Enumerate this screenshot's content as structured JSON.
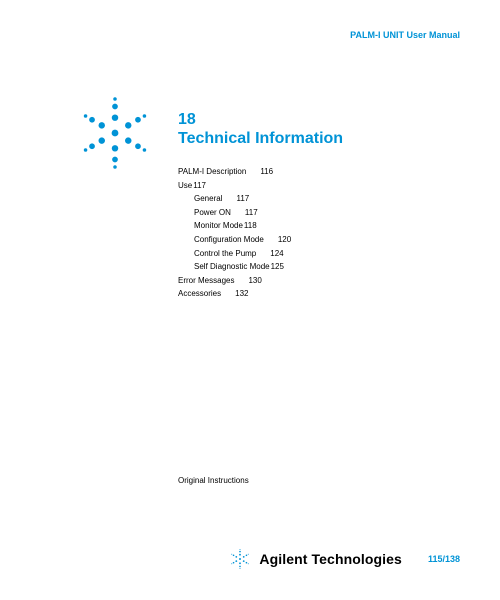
{
  "colors": {
    "accent": "#0093d6",
    "text": "#000000",
    "background": "#ffffff"
  },
  "header": {
    "manual_title": "PALM-I UNIT User Manual"
  },
  "chapter": {
    "number": "18",
    "title": "Technical Information"
  },
  "toc": [
    {
      "label": "PALM-I Description",
      "page": "116",
      "indent": 0
    },
    {
      "label": "Use",
      "page": "117",
      "indent": 0,
      "tight": true
    },
    {
      "label": "General",
      "page": "117",
      "indent": 1
    },
    {
      "label": "Power ON",
      "page": "117",
      "indent": 1
    },
    {
      "label": "Monitor Mode",
      "page": "118",
      "indent": 1,
      "tight": true
    },
    {
      "label": "Configuration Mode",
      "page": "120",
      "indent": 1
    },
    {
      "label": "Control the Pump",
      "page": "124",
      "indent": 1
    },
    {
      "label": "Self Diagnostic Mode",
      "page": "125",
      "indent": 1,
      "tight": true
    },
    {
      "label": "Error Messages",
      "page": "130",
      "indent": 0
    },
    {
      "label": "Accessories",
      "page": "132",
      "indent": 0
    }
  ],
  "original_instructions": "Original Instructions",
  "footer": {
    "brand": "Agilent Technologies",
    "page_number": "115/138"
  },
  "starburst": {
    "dot_count": 18,
    "dot_radius_small": 2.2,
    "dot_radius_large": 3.4,
    "ring_radius": 34,
    "color": "#0093d6"
  }
}
